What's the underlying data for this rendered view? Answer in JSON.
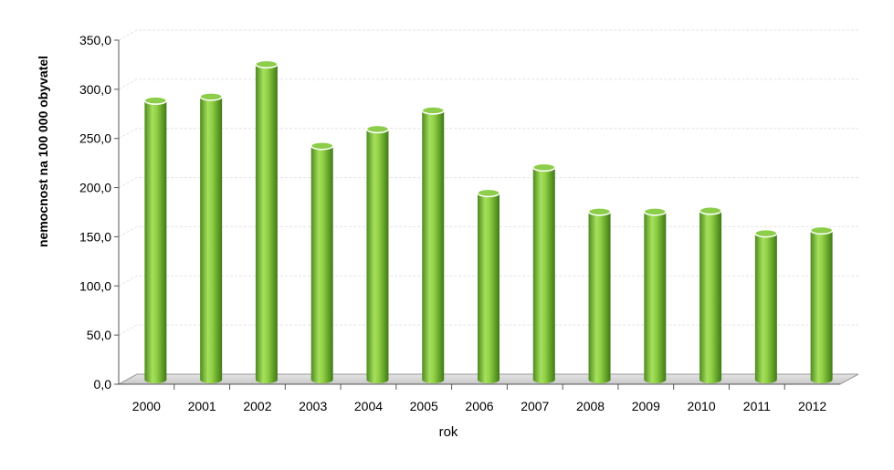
{
  "chart_data": {
    "type": "bar",
    "categories": [
      "2000",
      "2001",
      "2002",
      "2003",
      "2004",
      "2005",
      "2006",
      "2007",
      "2008",
      "2009",
      "2010",
      "2011",
      "2012"
    ],
    "values": [
      283,
      287,
      320,
      237,
      254,
      273,
      189,
      215,
      170,
      170,
      171,
      148,
      151
    ],
    "xlabel": "rok",
    "ylabel": "nemocnost na 100 000 obyvatel",
    "ylim": [
      0,
      350
    ],
    "yticks": [
      "0,0",
      "50,0",
      "100,0",
      "150,0",
      "200,0",
      "250,0",
      "300,0",
      "350,0"
    ],
    "grid": true,
    "legend": "none",
    "bar_color": "#7cc242",
    "style": "3d-cylinder"
  }
}
